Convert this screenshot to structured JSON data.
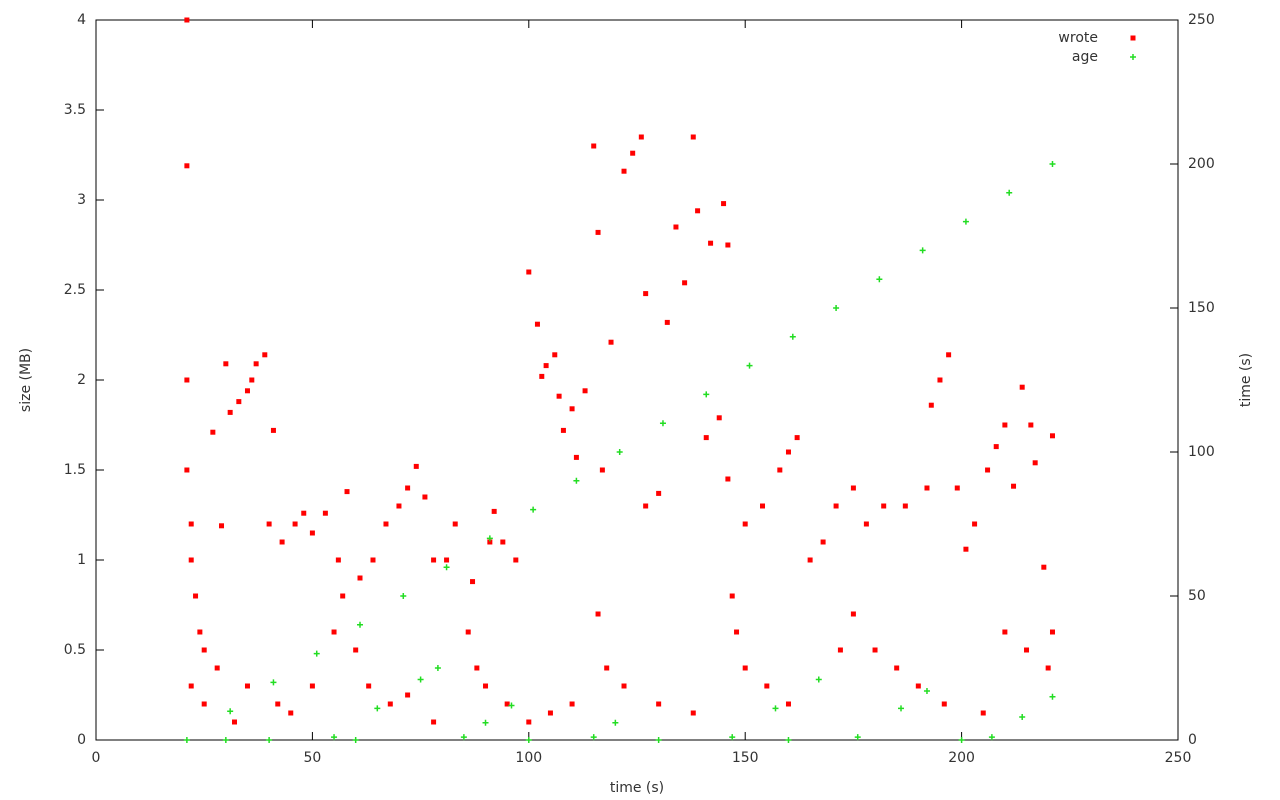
{
  "chart_data": {
    "type": "scatter",
    "xlabel": "time (s)",
    "ylabel": "size (MB)",
    "y2label": "time (s)",
    "xlim": [
      0,
      250
    ],
    "xticks": [
      0,
      50,
      100,
      150,
      200,
      250
    ],
    "ylim": [
      0,
      4
    ],
    "yticks": [
      0,
      0.5,
      1,
      1.5,
      2,
      2.5,
      3,
      3.5,
      4
    ],
    "y2lim": [
      0,
      250
    ],
    "y2ticks": [
      0,
      50,
      100,
      150,
      200,
      250
    ],
    "grid": false,
    "legend": "top-right",
    "series": [
      {
        "name": "wrote",
        "color": "#ff0000",
        "marker": "square",
        "x": [
          21,
          21,
          21,
          21,
          22,
          22,
          23,
          24,
          25,
          27,
          29,
          30,
          31,
          33,
          35,
          36,
          37,
          39,
          41,
          40,
          43,
          46,
          48,
          50,
          53,
          56,
          58,
          61,
          64,
          67,
          70,
          72,
          74,
          76,
          78,
          81,
          83,
          87,
          91,
          92,
          94,
          97,
          100,
          102,
          103,
          104,
          106,
          107,
          108,
          110,
          111,
          113,
          115,
          116,
          117,
          119,
          122,
          124,
          126,
          127,
          127,
          130,
          132,
          134,
          136,
          138,
          139,
          141,
          142,
          144,
          145,
          146,
          146,
          150,
          154,
          158,
          160,
          162,
          165,
          168,
          171,
          175,
          178,
          182,
          187,
          192,
          193,
          195,
          197,
          199,
          201,
          203,
          206,
          208,
          210,
          212,
          214,
          216,
          217,
          219,
          221,
          221,
          22,
          25,
          28,
          32,
          35,
          42,
          45,
          50,
          55,
          57,
          60,
          63,
          68,
          72,
          78,
          86,
          88,
          90,
          95,
          100,
          105,
          110,
          116,
          118,
          122,
          130,
          138,
          147,
          148,
          150,
          155,
          160,
          172,
          175,
          180,
          185,
          190,
          196,
          205,
          210,
          215,
          220
        ],
        "values": [
          4.0,
          3.19,
          2.0,
          1.5,
          1.2,
          1.0,
          0.8,
          0.6,
          0.5,
          1.71,
          1.19,
          2.09,
          1.82,
          1.88,
          1.94,
          2.0,
          2.09,
          2.14,
          1.72,
          1.2,
          1.1,
          1.2,
          1.26,
          1.15,
          1.26,
          1.0,
          1.38,
          0.9,
          1.0,
          1.2,
          1.3,
          1.4,
          1.52,
          1.35,
          1.0,
          1.0,
          1.2,
          0.88,
          1.1,
          1.27,
          1.1,
          1.0,
          2.6,
          2.31,
          2.02,
          2.08,
          2.14,
          1.91,
          1.72,
          1.84,
          1.57,
          1.94,
          3.3,
          2.82,
          1.5,
          2.21,
          3.16,
          3.26,
          3.35,
          2.48,
          1.3,
          1.37,
          2.32,
          2.85,
          2.54,
          3.35,
          2.94,
          1.68,
          2.76,
          1.79,
          2.98,
          2.75,
          1.45,
          1.2,
          1.3,
          1.5,
          1.6,
          1.68,
          1.0,
          1.1,
          1.3,
          1.4,
          1.2,
          1.3,
          1.3,
          1.4,
          1.86,
          2.0,
          2.14,
          1.4,
          1.06,
          1.2,
          1.5,
          1.63,
          1.75,
          1.41,
          1.96,
          1.75,
          1.54,
          0.96,
          1.69,
          0.6,
          0.3,
          0.2,
          0.4,
          0.1,
          0.3,
          0.2,
          0.15,
          0.3,
          0.6,
          0.8,
          0.5,
          0.3,
          0.2,
          0.25,
          0.1,
          0.6,
          0.4,
          0.3,
          0.2,
          0.1,
          0.15,
          0.2,
          0.7,
          0.4,
          0.3,
          0.2,
          0.15,
          0.8,
          0.6,
          0.4,
          0.3,
          0.2,
          0.5,
          0.7,
          0.5,
          0.4,
          0.3,
          0.2,
          0.15,
          0.6,
          0.5,
          0.4
        ]
      },
      {
        "name": "age",
        "color": "#22dd22",
        "marker": "plus",
        "axis": "y2",
        "x": [
          21,
          31,
          41,
          51,
          61,
          71,
          81,
          91,
          101,
          111,
          121,
          131,
          141,
          151,
          161,
          171,
          181,
          191,
          201,
          211,
          221,
          55,
          65,
          75,
          79,
          85,
          90,
          96,
          115,
          120,
          147,
          157,
          167,
          176,
          186,
          192,
          207,
          214,
          221,
          30,
          40,
          60,
          100,
          130,
          160,
          200
        ],
        "values": [
          0,
          10,
          20,
          30,
          40,
          50,
          60,
          70,
          80,
          90,
          100,
          110,
          120,
          130,
          140,
          150,
          160,
          170,
          180,
          190,
          200,
          1,
          11,
          21,
          25,
          1,
          6,
          12,
          1,
          6,
          1,
          11,
          21,
          1,
          11,
          17,
          1,
          8,
          15,
          0,
          0,
          0,
          0,
          0,
          0,
          0
        ]
      }
    ]
  }
}
